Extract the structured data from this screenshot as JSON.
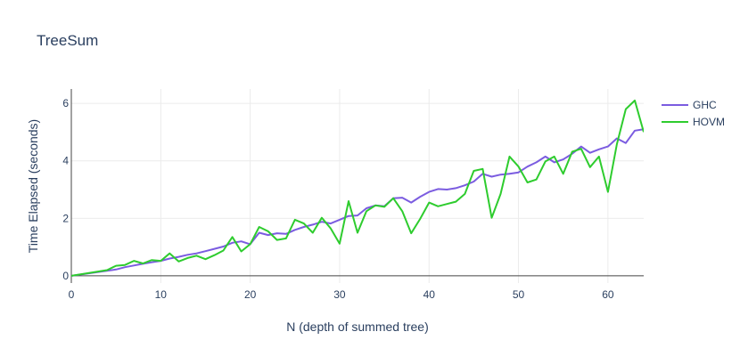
{
  "chart_data": {
    "type": "line",
    "title": "TreeSum",
    "xlabel": "N (depth of summed tree)",
    "ylabel": "Time Elapsed (seconds)",
    "xlim": [
      0,
      64
    ],
    "ylim": [
      -0.25,
      6.5
    ],
    "xticks": [
      0,
      10,
      20,
      30,
      40,
      50,
      60
    ],
    "yticks": [
      0,
      2,
      4,
      6
    ],
    "grid": true,
    "legend_position": "top-right",
    "series": [
      {
        "name": "GHC",
        "color": "#7b5ce0",
        "x": [
          0,
          5,
          6,
          7,
          8,
          9,
          10,
          11,
          12,
          13,
          14,
          15,
          16,
          17,
          18,
          19,
          20,
          21,
          22,
          23,
          24,
          25,
          26,
          27,
          28,
          29,
          30,
          31,
          32,
          33,
          34,
          35,
          36,
          37,
          38,
          39,
          40,
          41,
          42,
          43,
          44,
          45,
          46,
          47,
          48,
          49,
          50,
          51,
          52,
          53,
          54,
          55,
          56,
          57,
          58,
          59,
          60,
          61,
          62,
          63,
          64
        ],
        "y": [
          0.0,
          0.22,
          0.3,
          0.36,
          0.42,
          0.47,
          0.52,
          0.6,
          0.66,
          0.73,
          0.78,
          0.86,
          0.94,
          1.02,
          1.15,
          1.2,
          1.1,
          1.5,
          1.42,
          1.48,
          1.46,
          1.6,
          1.7,
          1.78,
          1.88,
          1.82,
          1.95,
          2.08,
          2.1,
          2.35,
          2.45,
          2.42,
          2.7,
          2.72,
          2.55,
          2.75,
          2.92,
          3.02,
          3.0,
          3.05,
          3.15,
          3.28,
          3.55,
          3.45,
          3.52,
          3.55,
          3.6,
          3.8,
          3.95,
          4.15,
          3.95,
          4.05,
          4.25,
          4.5,
          4.28,
          4.4,
          4.5,
          4.78,
          4.62,
          5.05,
          5.1
        ]
      },
      {
        "name": "HOVM",
        "color": "#2ecc2e",
        "x": [
          0,
          4,
          5,
          6,
          7,
          8,
          9,
          10,
          11,
          12,
          13,
          14,
          15,
          16,
          17,
          18,
          19,
          20,
          21,
          22,
          23,
          24,
          25,
          26,
          27,
          28,
          29,
          30,
          31,
          32,
          33,
          34,
          35,
          36,
          37,
          38,
          39,
          40,
          41,
          42,
          43,
          44,
          45,
          46,
          47,
          48,
          49,
          50,
          51,
          52,
          53,
          54,
          55,
          56,
          57,
          58,
          59,
          60,
          61,
          62,
          63,
          64
        ],
        "y": [
          0.0,
          0.2,
          0.35,
          0.38,
          0.52,
          0.43,
          0.55,
          0.52,
          0.78,
          0.5,
          0.62,
          0.7,
          0.58,
          0.72,
          0.88,
          1.35,
          0.85,
          1.1,
          1.7,
          1.55,
          1.25,
          1.3,
          1.95,
          1.82,
          1.5,
          2.02,
          1.65,
          1.12,
          2.6,
          1.5,
          2.25,
          2.45,
          2.4,
          2.7,
          2.25,
          1.48,
          1.98,
          2.55,
          2.42,
          2.5,
          2.58,
          2.85,
          3.65,
          3.72,
          2.02,
          2.85,
          4.15,
          3.8,
          3.25,
          3.35,
          3.98,
          4.15,
          3.55,
          4.32,
          4.42,
          3.78,
          4.15,
          2.92,
          4.58,
          5.8,
          6.1,
          5.0
        ]
      }
    ]
  }
}
